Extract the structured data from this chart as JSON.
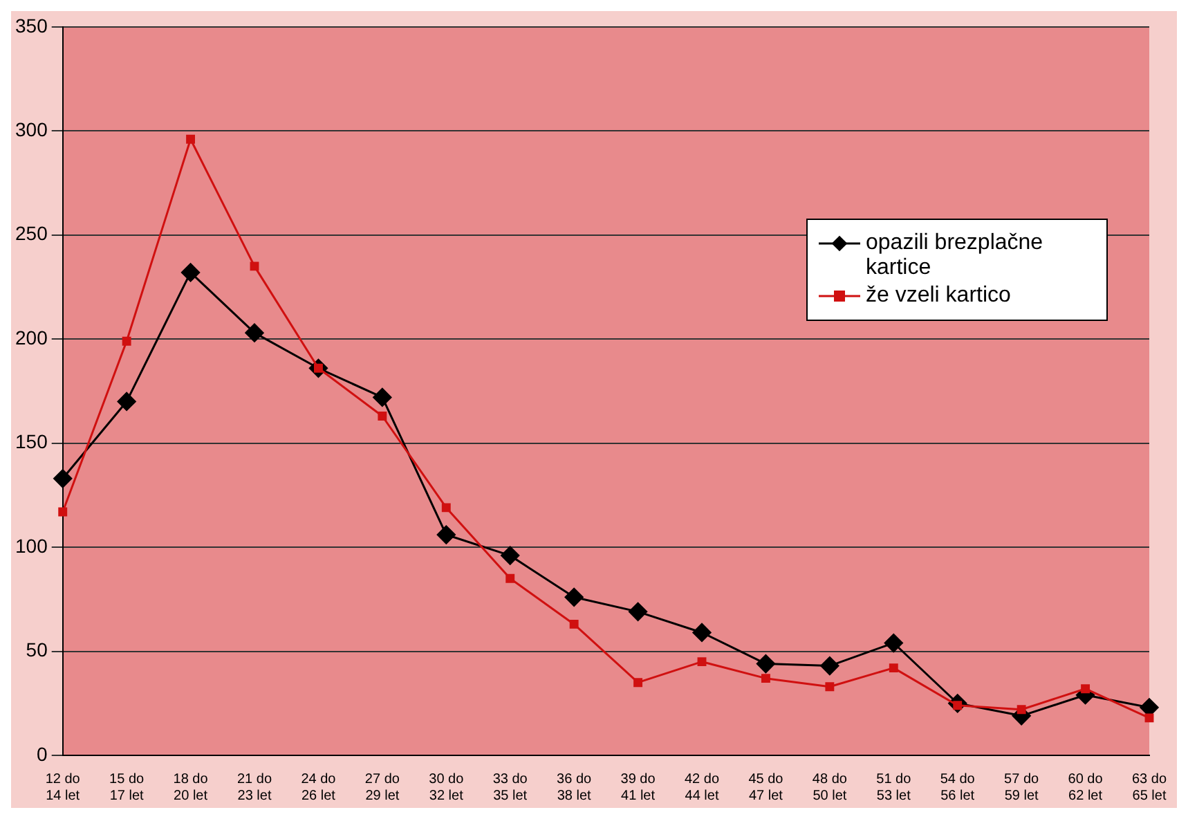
{
  "chart_data": {
    "type": "line",
    "categories": [
      "12 do 14 let",
      "15 do 17 let",
      "18 do 20 let",
      "21 do 23 let",
      "24 do 26 let",
      "27 do 29 let",
      "30 do 32 let",
      "33 do 35 let",
      "36 do 38 let",
      "39 do 41 let",
      "42 do 44 let",
      "45 do 47 let",
      "48 do 50 let",
      "51 do 53 let",
      "54 do 56 let",
      "57 do 59 let",
      "60 do 62 let",
      "63 do 65 let"
    ],
    "series": [
      {
        "name": "opazili brezplačne kartice",
        "color": "#000000",
        "marker": "diamond",
        "values": [
          133,
          170,
          232,
          203,
          186,
          172,
          106,
          96,
          76,
          69,
          59,
          44,
          43,
          54,
          25,
          19,
          29,
          23
        ]
      },
      {
        "name": "že vzeli kartico",
        "color": "#d01010",
        "marker": "square",
        "values": [
          117,
          199,
          296,
          235,
          186,
          163,
          119,
          85,
          63,
          35,
          45,
          37,
          33,
          42,
          24,
          22,
          32,
          18
        ]
      }
    ],
    "ylim": [
      0,
      350
    ],
    "yticks": [
      0,
      50,
      100,
      150,
      200,
      250,
      300,
      350
    ],
    "grid": "y",
    "legend": "top right",
    "line_style": "solid"
  }
}
